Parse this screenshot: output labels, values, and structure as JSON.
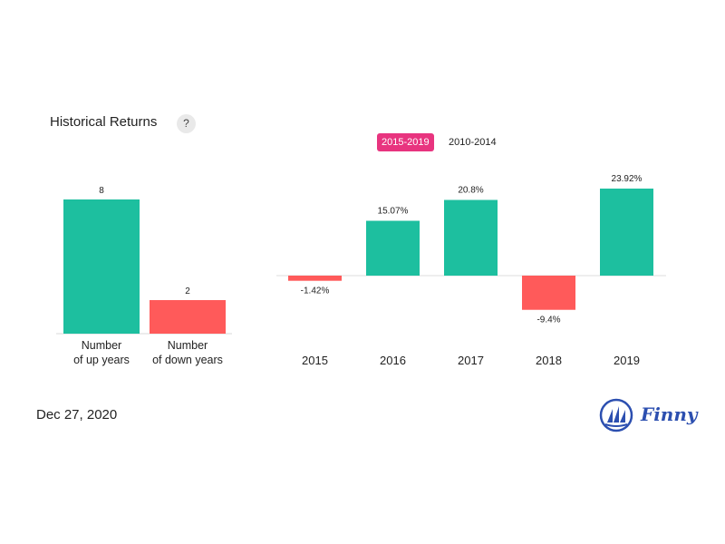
{
  "header": {
    "title": "Historical Returns",
    "help_label": "?"
  },
  "tabs": [
    {
      "label": "2015-2019",
      "active": true
    },
    {
      "label": "2010-2014",
      "active": false
    }
  ],
  "chart_data": [
    {
      "type": "bar",
      "categories": [
        "Number\nof up years",
        "Number\nof down years"
      ],
      "values": [
        8,
        2
      ],
      "value_labels": [
        "8",
        "2"
      ],
      "colors": [
        "#1dbf9f",
        "#ff5a5a"
      ],
      "ylim": [
        0,
        8
      ]
    },
    {
      "type": "bar",
      "categories": [
        "2015",
        "2016",
        "2017",
        "2018",
        "2019"
      ],
      "values": [
        -1.42,
        15.07,
        20.8,
        -9.4,
        23.92
      ],
      "value_labels": [
        "-1.42%",
        "15.07%",
        "20.8%",
        "-9.4%",
        "23.92%"
      ],
      "positive_color": "#1dbf9f",
      "negative_color": "#ff5a5a",
      "ylim": [
        -9.4,
        23.92
      ]
    }
  ],
  "footer": {
    "date": "Dec 27, 2020",
    "brand": "Finny",
    "brand_color": "#2c4fb0"
  }
}
